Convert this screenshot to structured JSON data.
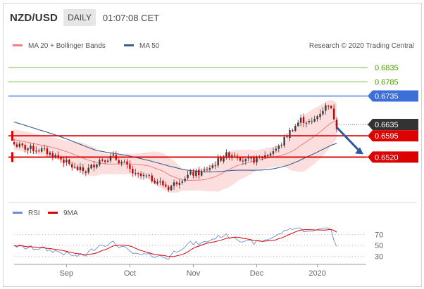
{
  "header": {
    "pair": "NZD/USD",
    "timeframe": "DAILY",
    "time": "01:07:08 CET"
  },
  "legend": {
    "ma20_bb": "MA 20 + Bollinger Bands",
    "ma50": "MA 50",
    "credit": "Research © 2020 Trading Central",
    "rsi": "RSI",
    "ma9": "9MA"
  },
  "colors": {
    "bb_fill": "#fbd3d3",
    "ma20": "#f08080",
    "ma50": "#3a5f91",
    "green": "#4e9a06",
    "blue": "#3d6fd9",
    "red": "#dd0000",
    "dark": "#333333",
    "bull": "#3a3a3a",
    "bear": "#cc0000",
    "rsi": "#6b8fd9",
    "rsi_ma": "#dd0000"
  },
  "chart_data": [
    {
      "type": "candlestick",
      "title": "NZD/USD DAILY",
      "x_ticks": [
        "Sep",
        "Oct",
        "Nov",
        "Dec",
        "2020"
      ],
      "ylim": [
        0.6375,
        0.687
      ],
      "levels": [
        {
          "label": "0.6835",
          "value": 0.6835,
          "style": "green"
        },
        {
          "label": "0.6785",
          "value": 0.6785,
          "style": "green"
        },
        {
          "label": "0.6735",
          "value": 0.6735,
          "style": "blue"
        },
        {
          "label": "0.6635",
          "value": 0.6635,
          "style": "dark"
        },
        {
          "label": "0.6595",
          "value": 0.6595,
          "style": "red"
        },
        {
          "label": "0.6520",
          "value": 0.652,
          "style": "red"
        }
      ],
      "forecast_arrow": {
        "from": 0.6625,
        "to": 0.653
      },
      "series": [
        {
          "name": "MA 20 + Bollinger Bands"
        },
        {
          "name": "MA 50"
        }
      ]
    },
    {
      "type": "line",
      "series": [
        {
          "name": "RSI"
        },
        {
          "name": "9MA"
        }
      ],
      "y_ticks": [
        70,
        50,
        30
      ],
      "ylim": [
        15,
        90
      ]
    }
  ]
}
